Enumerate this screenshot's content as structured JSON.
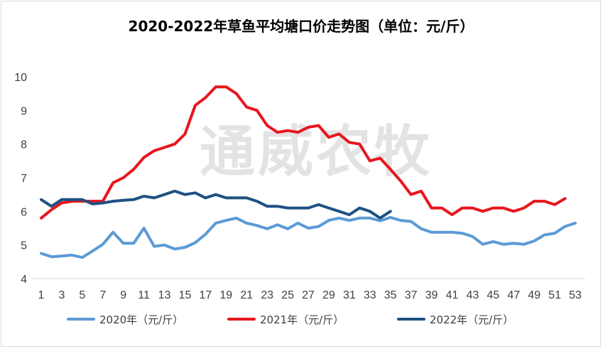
{
  "watermark": "通威农牧",
  "chart_data": {
    "type": "line",
    "title": "2020-2022年草鱼平均塘口价走势图（单位：元/斤）",
    "xlabel": "",
    "ylabel": "",
    "x_range": [
      1,
      53
    ],
    "x_ticks": [
      1,
      3,
      5,
      7,
      9,
      11,
      13,
      15,
      17,
      19,
      21,
      23,
      25,
      27,
      29,
      31,
      33,
      35,
      37,
      39,
      41,
      43,
      45,
      47,
      49,
      51,
      53
    ],
    "ylim": [
      4,
      10
    ],
    "y_ticks": [
      4,
      5,
      6,
      7,
      8,
      9,
      10
    ],
    "grid": false,
    "legend_position": "bottom",
    "series": [
      {
        "name": "2020年（元/斤）",
        "color": "#5b9bd5",
        "values": [
          4.75,
          4.65,
          4.67,
          4.7,
          4.63,
          4.82,
          5.02,
          5.38,
          5.05,
          5.05,
          5.5,
          4.96,
          5.0,
          4.88,
          4.93,
          5.07,
          5.32,
          5.65,
          5.73,
          5.8,
          5.65,
          5.58,
          5.48,
          5.6,
          5.48,
          5.65,
          5.5,
          5.55,
          5.73,
          5.8,
          5.73,
          5.8,
          5.8,
          5.72,
          5.82,
          5.73,
          5.7,
          5.48,
          5.38,
          5.38,
          5.38,
          5.35,
          5.25,
          5.02,
          5.1,
          5.02,
          5.05,
          5.02,
          5.12,
          5.3,
          5.35,
          5.55,
          5.65
        ]
      },
      {
        "name": "2021年（元/斤）",
        "color": "#e8161e",
        "values": [
          5.8,
          6.05,
          6.25,
          6.3,
          6.3,
          6.3,
          6.3,
          6.85,
          7.0,
          7.25,
          7.6,
          7.8,
          7.9,
          8.0,
          8.3,
          9.15,
          9.38,
          9.7,
          9.7,
          9.5,
          9.1,
          9.0,
          8.55,
          8.35,
          8.4,
          8.35,
          8.5,
          8.55,
          8.2,
          8.3,
          8.05,
          8.0,
          7.5,
          7.58,
          7.25,
          6.9,
          6.5,
          6.6,
          6.1,
          6.1,
          5.9,
          6.1,
          6.1,
          6.0,
          6.1,
          6.1,
          6.0,
          6.1,
          6.3,
          6.3,
          6.2,
          6.38
        ]
      },
      {
        "name": "2022年（元/斤）",
        "color": "#1f5182",
        "values": [
          6.35,
          6.15,
          6.35,
          6.35,
          6.35,
          6.22,
          6.25,
          6.3,
          6.33,
          6.35,
          6.45,
          6.4,
          6.5,
          6.6,
          6.5,
          6.55,
          6.4,
          6.5,
          6.4,
          6.4,
          6.4,
          6.3,
          6.15,
          6.15,
          6.1,
          6.1,
          6.1,
          6.2,
          6.1,
          6.0,
          5.9,
          6.1,
          6.0,
          5.8,
          6.0
        ]
      }
    ]
  }
}
